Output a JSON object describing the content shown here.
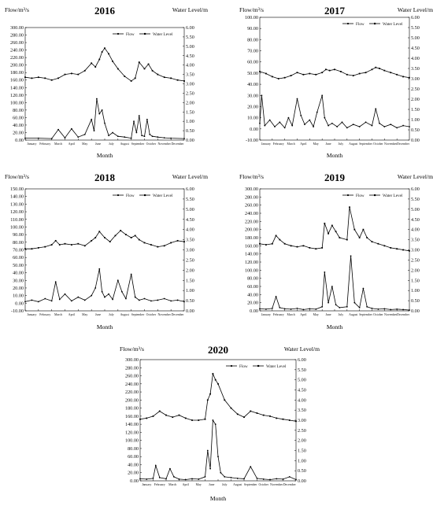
{
  "chart_data": [
    {
      "type": "line",
      "title": "2016",
      "xlabel": "Month",
      "ylabel_left": "Flow/m³/s",
      "ylabel_right": "Water Level/m",
      "yticks_left": [
        "0.00",
        "20.00",
        "40.00",
        "60.00",
        "80.00",
        "100.00",
        "120.00",
        "140.00",
        "160.00",
        "180.00",
        "200.00",
        "220.00",
        "240.00",
        "260.00",
        "280.00",
        "300.00"
      ],
      "yticks_right": [
        "0.00",
        "0.50",
        "1.00",
        "1.50",
        "2.00",
        "2.50",
        "3.00",
        "3.50",
        "4.00",
        "4.50",
        "5.00",
        "5.50",
        "6.00"
      ],
      "ylim_left": [
        0,
        300
      ],
      "ylim_right": [
        0,
        6
      ],
      "months": [
        "January",
        "February",
        "March",
        "April",
        "May",
        "June",
        "July",
        "August",
        "September",
        "October",
        "November",
        "December"
      ],
      "legend": [
        "Flow",
        "Water Level"
      ],
      "series": [
        {
          "name": "Flow",
          "axis": "left",
          "x": [
            0,
            1,
            2,
            2.5,
            3,
            3.5,
            4,
            4.5,
            5,
            5.2,
            5.4,
            5.6,
            5.8,
            6,
            6.3,
            6.6,
            7,
            7.5,
            8,
            8.2,
            8.4,
            8.6,
            8.8,
            9,
            9.2,
            9.4,
            9.6,
            10,
            10.5,
            11,
            12
          ],
          "values": [
            5,
            5,
            4,
            28,
            6,
            30,
            8,
            15,
            55,
            25,
            110,
            70,
            80,
            45,
            12,
            20,
            10,
            8,
            5,
            50,
            20,
            65,
            12,
            10,
            55,
            15,
            10,
            8,
            6,
            5,
            4
          ]
        },
        {
          "name": "Water Level",
          "axis": "right",
          "x": [
            0,
            0.5,
            1,
            1.5,
            2,
            2.5,
            3,
            3.5,
            4,
            4.5,
            5,
            5.3,
            5.6,
            5.8,
            6,
            6.3,
            6.6,
            7,
            7.5,
            8,
            8.3,
            8.6,
            9,
            9.3,
            9.6,
            10,
            10.5,
            11,
            11.5,
            12
          ],
          "values": [
            3.35,
            3.3,
            3.35,
            3.3,
            3.2,
            3.3,
            3.5,
            3.55,
            3.5,
            3.7,
            4.1,
            3.9,
            4.3,
            4.7,
            4.9,
            4.6,
            4.2,
            3.8,
            3.4,
            3.15,
            3.3,
            4.15,
            3.8,
            4.05,
            3.7,
            3.5,
            3.35,
            3.3,
            3.2,
            3.15
          ]
        }
      ]
    },
    {
      "type": "line",
      "title": "2017",
      "xlabel": "Month",
      "ylabel_left": "Flow/m³/s",
      "ylabel_right": "Water Level/m",
      "yticks_left": [
        "-10.00",
        "0.00",
        "10.00",
        "20.00",
        "30.00",
        "40.00",
        "50.00",
        "60.00",
        "70.00",
        "80.00",
        "90.00",
        "100.00"
      ],
      "yticks_right": [
        "0.00",
        "0.50",
        "1.00",
        "1.50",
        "2.00",
        "2.50",
        "3.00",
        "3.50",
        "4.00",
        "4.50",
        "5.00",
        "5.50",
        "6.00"
      ],
      "ylim_left": [
        -10,
        100
      ],
      "ylim_right": [
        0,
        6
      ],
      "months": [
        "January",
        "February",
        "March",
        "April",
        "May",
        "June",
        "July",
        "August",
        "September",
        "October",
        "November",
        "December"
      ],
      "legend": [
        "Flow",
        "Water Level"
      ],
      "series": [
        {
          "name": "Flow",
          "axis": "left",
          "x": [
            0,
            0.15,
            0.4,
            0.8,
            1.2,
            1.6,
            2,
            2.3,
            2.6,
            3,
            3.3,
            3.6,
            4,
            4.3,
            4.6,
            5,
            5.2,
            5.5,
            5.8,
            6.2,
            6.6,
            7,
            7.5,
            8,
            8.5,
            9,
            9.3,
            9.6,
            10,
            10.5,
            11,
            11.5,
            12
          ],
          "values": [
            5,
            30,
            3,
            8,
            2,
            6,
            1,
            10,
            3,
            27,
            12,
            4,
            8,
            2,
            15,
            30,
            10,
            3,
            5,
            2,
            6,
            1,
            4,
            2,
            6,
            3,
            18,
            5,
            2,
            4,
            1,
            3,
            2
          ]
        },
        {
          "name": "Water Level",
          "axis": "right",
          "x": [
            0,
            0.5,
            1,
            1.5,
            2,
            2.5,
            3,
            3.5,
            4,
            4.5,
            5,
            5.3,
            5.6,
            6,
            6.5,
            7,
            7.5,
            8,
            8.5,
            9,
            9.3,
            9.6,
            10,
            10.5,
            11,
            11.5,
            12
          ],
          "values": [
            3.35,
            3.25,
            3.1,
            3.0,
            3.05,
            3.15,
            3.3,
            3.2,
            3.25,
            3.2,
            3.3,
            3.45,
            3.4,
            3.45,
            3.35,
            3.2,
            3.15,
            3.25,
            3.3,
            3.45,
            3.55,
            3.5,
            3.4,
            3.3,
            3.2,
            3.1,
            3.05
          ]
        }
      ]
    },
    {
      "type": "line",
      "title": "2018",
      "xlabel": "Month",
      "ylabel_left": "Flow/m³/s",
      "ylabel_right": "Water Level/m",
      "yticks_left": [
        "-10.00",
        "0.00",
        "10.00",
        "20.00",
        "30.00",
        "40.00",
        "50.00",
        "60.00",
        "70.00",
        "80.00",
        "90.00",
        "100.00",
        "110.00",
        "120.00",
        "130.00",
        "140.00",
        "150.00"
      ],
      "yticks_right": [
        "0.00",
        "0.50",
        "1.00",
        "1.50",
        "2.00",
        "2.50",
        "3.00",
        "3.50",
        "4.00",
        "4.50",
        "5.00",
        "5.50",
        "6.00"
      ],
      "ylim_left": [
        -10,
        150
      ],
      "ylim_right": [
        0,
        6
      ],
      "months": [
        "January",
        "February",
        "March",
        "April",
        "May",
        "June",
        "July",
        "August",
        "September",
        "October",
        "November",
        "December"
      ],
      "legend": [
        "Flow",
        "Water Level"
      ],
      "series": [
        {
          "name": "Flow",
          "axis": "left",
          "x": [
            0,
            0.5,
            1,
            1.5,
            2,
            2.3,
            2.6,
            3,
            3.5,
            4,
            4.5,
            5,
            5.3,
            5.6,
            5.8,
            6,
            6.3,
            6.6,
            7,
            7.3,
            7.6,
            8,
            8.3,
            8.6,
            9,
            9.5,
            10,
            10.5,
            11,
            11.5,
            12
          ],
          "values": [
            2,
            4,
            2,
            6,
            3,
            28,
            5,
            12,
            3,
            8,
            4,
            10,
            20,
            45,
            15,
            8,
            12,
            5,
            30,
            15,
            6,
            38,
            8,
            4,
            6,
            3,
            4,
            6,
            3,
            4,
            2
          ]
        },
        {
          "name": "Water Level",
          "axis": "right",
          "x": [
            0,
            0.5,
            1,
            1.5,
            2,
            2.3,
            2.6,
            3,
            3.5,
            4,
            4.5,
            5,
            5.3,
            5.6,
            6,
            6.4,
            6.8,
            7.2,
            7.6,
            8,
            8.3,
            8.6,
            9,
            9.5,
            10,
            10.5,
            11,
            11.5,
            12
          ],
          "values": [
            3.05,
            3.05,
            3.1,
            3.15,
            3.25,
            3.45,
            3.25,
            3.3,
            3.25,
            3.3,
            3.2,
            3.45,
            3.6,
            3.9,
            3.6,
            3.4,
            3.7,
            3.95,
            3.75,
            3.6,
            3.7,
            3.5,
            3.35,
            3.25,
            3.15,
            3.2,
            3.35,
            3.45,
            3.4
          ]
        }
      ]
    },
    {
      "type": "line",
      "title": "2019",
      "xlabel": "Month",
      "ylabel_left": "Flow/m³/s",
      "ylabel_right": "Water Level/m",
      "yticks_left": [
        "0.00",
        "20.00",
        "40.00",
        "60.00",
        "80.00",
        "100.00",
        "120.00",
        "140.00",
        "160.00",
        "180.00",
        "200.00",
        "220.00",
        "240.00",
        "260.00",
        "280.00",
        "300.00"
      ],
      "yticks_right": [
        "0.00",
        "0.50",
        "1.00",
        "1.50",
        "2.00",
        "2.50",
        "3.00",
        "3.50",
        "4.00",
        "4.50",
        "5.00",
        "5.50",
        "6.00"
      ],
      "ylim_left": [
        0,
        300
      ],
      "ylim_right": [
        0,
        6
      ],
      "months": [
        "January",
        "February",
        "March",
        "April",
        "May",
        "June",
        "July",
        "August",
        "September",
        "October",
        "November",
        "December"
      ],
      "legend": [
        "Flow",
        "Water Level"
      ],
      "series": [
        {
          "name": "Flow",
          "axis": "left",
          "x": [
            0,
            0.5,
            1,
            1.3,
            1.6,
            2,
            2.5,
            3,
            3.5,
            4,
            4.5,
            5,
            5.2,
            5.5,
            5.8,
            6.1,
            6.4,
            7,
            7.3,
            7.6,
            8,
            8.3,
            8.6,
            9,
            9.5,
            10,
            10.5,
            11,
            11.5,
            12
          ],
          "values": [
            5,
            4,
            6,
            35,
            8,
            5,
            4,
            6,
            3,
            5,
            4,
            10,
            95,
            20,
            60,
            15,
            8,
            10,
            135,
            20,
            8,
            55,
            10,
            6,
            4,
            5,
            3,
            4,
            3,
            2
          ]
        },
        {
          "name": "Water Level",
          "axis": "right",
          "x": [
            0,
            0.5,
            1,
            1.3,
            1.6,
            2,
            2.5,
            3,
            3.5,
            4,
            4.5,
            5,
            5.2,
            5.5,
            5.8,
            6.1,
            6.4,
            7,
            7.2,
            7.6,
            8,
            8.3,
            8.6,
            9,
            9.5,
            10,
            10.5,
            11,
            11.5,
            12
          ],
          "values": [
            3.3,
            3.25,
            3.3,
            3.7,
            3.5,
            3.3,
            3.2,
            3.15,
            3.2,
            3.1,
            3.05,
            3.1,
            4.3,
            3.8,
            4.2,
            3.9,
            3.6,
            3.5,
            5.1,
            4.0,
            3.6,
            4.0,
            3.6,
            3.4,
            3.3,
            3.2,
            3.1,
            3.05,
            3.0,
            2.95
          ]
        }
      ]
    },
    {
      "type": "line",
      "title": "2020",
      "xlabel": "Month",
      "ylabel_left": "Flow/m³/s",
      "ylabel_right": "Water Level/m",
      "yticks_left": [
        "0.00",
        "20.00",
        "40.00",
        "60.00",
        "80.00",
        "100.00",
        "120.00",
        "140.00",
        "160.00",
        "180.00",
        "200.00",
        "220.00",
        "240.00",
        "260.00",
        "280.00",
        "300.00"
      ],
      "yticks_right": [
        "0.00",
        "0.50",
        "1.00",
        "1.50",
        "2.00",
        "2.50",
        "3.00",
        "3.50",
        "4.00",
        "4.50",
        "5.00",
        "5.50",
        "6.00"
      ],
      "ylim_left": [
        0,
        300
      ],
      "ylim_right": [
        0,
        6
      ],
      "months": [
        "January",
        "February",
        "March",
        "April",
        "May",
        "June",
        "July",
        "August",
        "September",
        "October",
        "November",
        "December"
      ],
      "legend": [
        "Flow",
        "Water Level"
      ],
      "series": [
        {
          "name": "Flow",
          "axis": "left",
          "x": [
            0,
            0.5,
            1,
            1.2,
            1.5,
            2,
            2.3,
            2.6,
            3,
            3.5,
            4,
            4.5,
            5,
            5.2,
            5.4,
            5.6,
            5.8,
            6,
            6.2,
            6.5,
            7,
            7.5,
            8,
            8.5,
            9,
            9.5,
            10,
            10.5,
            11,
            11.5,
            12
          ],
          "values": [
            5,
            4,
            6,
            38,
            8,
            5,
            30,
            10,
            4,
            3,
            5,
            4,
            10,
            75,
            30,
            150,
            140,
            60,
            20,
            10,
            8,
            6,
            5,
            35,
            6,
            4,
            3,
            5,
            4,
            10,
            3
          ]
        },
        {
          "name": "Water Level",
          "axis": "right",
          "x": [
            0,
            0.5,
            1,
            1.5,
            2,
            2.5,
            3,
            3.5,
            4,
            4.5,
            5,
            5.2,
            5.4,
            5.6,
            5.8,
            6,
            6.5,
            7,
            7.5,
            8,
            8.5,
            9,
            9.5,
            10,
            10.5,
            11,
            11.5,
            12
          ],
          "values": [
            3.05,
            3.1,
            3.2,
            3.45,
            3.25,
            3.15,
            3.25,
            3.1,
            3.0,
            3.0,
            3.05,
            4.0,
            4.3,
            5.3,
            5.0,
            4.8,
            4.0,
            3.6,
            3.3,
            3.15,
            3.45,
            3.35,
            3.25,
            3.2,
            3.1,
            3.05,
            3.0,
            2.95
          ]
        }
      ]
    }
  ]
}
